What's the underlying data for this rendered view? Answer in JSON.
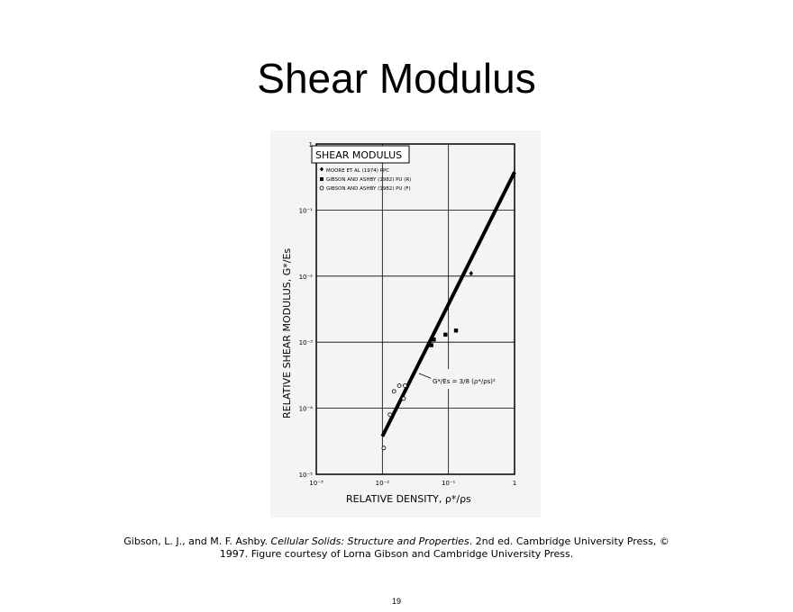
{
  "slide": {
    "title": "Shear Modulus",
    "page_number": "19"
  },
  "caption": {
    "part1": "Gibson, L. J., and M. F. Ashby. ",
    "book_title": "Cellular Solids: Structure and Properties",
    "part2": ". 2nd ed. Cambridge University Press, © 1997. Figure courtesy of Lorna Gibson and Cambridge University Press."
  },
  "chart_data": {
    "type": "scatter",
    "title": "SHEAR MODULUS",
    "xlabel": "RELATIVE DENSITY, ρ*/ρs",
    "ylabel": "RELATIVE SHEAR MODULUS, G*/Es",
    "xscale": "log",
    "yscale": "log",
    "xlim": [
      0.001,
      1
    ],
    "ylim": [
      1e-05,
      1
    ],
    "grid": true,
    "legend_position": "top-left",
    "x_ticks": [
      "10⁻³",
      "10⁻²",
      "10⁻¹",
      "1"
    ],
    "y_ticks": [
      "10⁻⁵",
      "10⁻⁴",
      "10⁻³",
      "10⁻²",
      "10⁻¹",
      "1"
    ],
    "series": [
      {
        "name": "MOORE ET AL (1974) PPC",
        "marker": "diamond",
        "points": [
          [
            0.22,
            0.011
          ]
        ]
      },
      {
        "name": "GIBSON AND ASHBY (1982) PU (R)",
        "marker": "square",
        "points": [
          [
            0.055,
            0.0009
          ],
          [
            0.06,
            0.0011
          ],
          [
            0.09,
            0.0013
          ],
          [
            0.13,
            0.0015
          ]
        ]
      },
      {
        "name": "GIBSON AND ASHBY (1982) PU (F)",
        "marker": "circle",
        "points": [
          [
            0.0105,
            2.5e-05
          ],
          [
            0.013,
            8e-05
          ],
          [
            0.015,
            0.00018
          ],
          [
            0.018,
            0.00022
          ],
          [
            0.021,
            0.00014
          ],
          [
            0.022,
            0.00022
          ]
        ]
      }
    ],
    "fit_line": {
      "x": [
        0.01,
        1
      ],
      "y": [
        3.75e-05,
        0.375
      ],
      "annotation": "G*/Es = 3/8 (ρ*/ρs)²"
    }
  }
}
